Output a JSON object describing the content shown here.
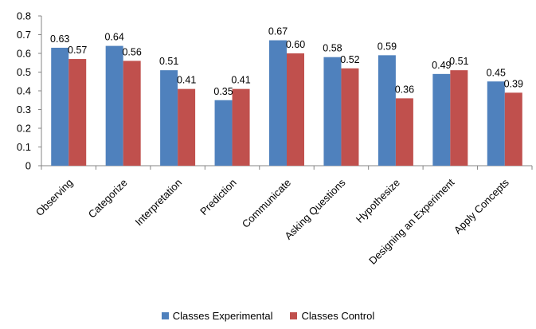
{
  "chart_data": {
    "type": "bar",
    "categories": [
      "Observing",
      "Categorize",
      "Interpretation",
      "Prediction",
      "Communicate",
      "Asking Questions",
      "Hypothesize",
      "Designing an Experiment",
      "Apply Concepts"
    ],
    "series": [
      {
        "name": "Classes Experimental",
        "color": "#4f81bd",
        "values": [
          0.63,
          0.64,
          0.51,
          0.35,
          0.67,
          0.58,
          0.59,
          0.49,
          0.45
        ],
        "labels": [
          "0.63",
          "0.64",
          "0.51",
          "0.35",
          "0.67",
          "0.58",
          "0.59",
          "0.49",
          "0.45"
        ]
      },
      {
        "name": "Classes Control",
        "color": "#c0504d",
        "values": [
          0.57,
          0.56,
          0.41,
          0.41,
          0.6,
          0.52,
          0.36,
          0.51,
          0.39
        ],
        "labels": [
          "0.57",
          "0.56",
          "0.41",
          "0.41",
          "0.60",
          "0.52",
          "0.36",
          "0.51",
          "0.39"
        ]
      }
    ],
    "yticks": [
      "0",
      "0.1",
      "0.2",
      "0.3",
      "0.4",
      "0.5",
      "0.6",
      "0.7",
      "0.8"
    ],
    "ylim": [
      0,
      0.8
    ],
    "grid": false,
    "legend": "bottom"
  }
}
